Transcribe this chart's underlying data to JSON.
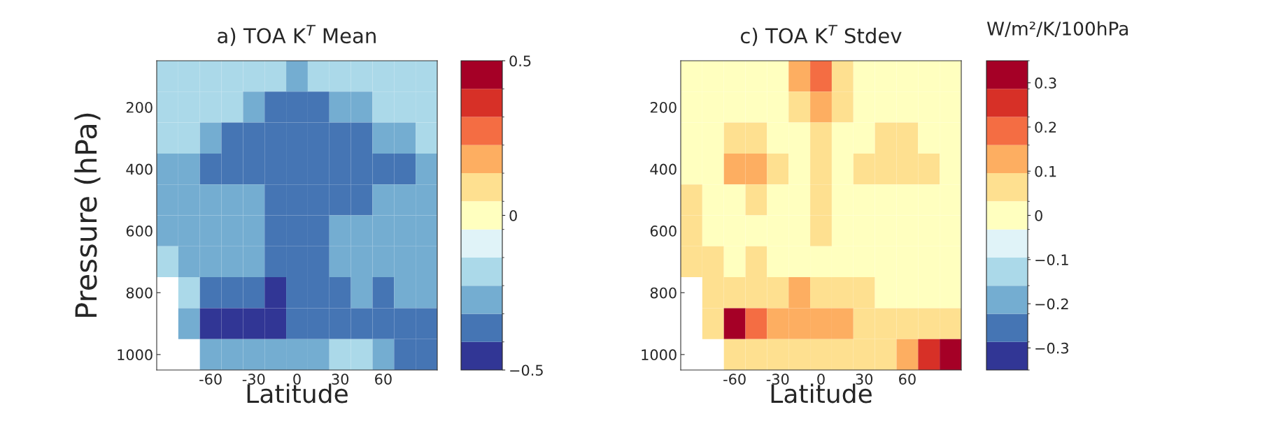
{
  "chart_data": [
    {
      "type": "heatmap",
      "title": "a) TOA K$^{T}$ Mean",
      "xlabel": "Latitude",
      "ylabel": "Pressure (hPa)",
      "categories": [
        null,
        null,
        "-60",
        null,
        "-30",
        null,
        "0",
        null,
        "30",
        null,
        "60",
        null,
        null
      ],
      "y_categories": [
        null,
        "200",
        null,
        "400",
        null,
        "600",
        null,
        "800",
        null,
        "1000"
      ],
      "clim": [
        -0.5,
        0.5
      ],
      "cticks": [
        {
          "value": -0.5,
          "label": "−0.5"
        },
        0,
        0.5
      ],
      "cells": [
        [
          -0.18,
          -0.18,
          -0.18,
          -0.18,
          -0.18,
          -0.18,
          -0.27,
          -0.18,
          -0.18,
          -0.18,
          -0.18,
          -0.18,
          -0.18
        ],
        [
          -0.18,
          -0.18,
          -0.18,
          -0.18,
          -0.27,
          -0.36,
          -0.36,
          -0.36,
          -0.27,
          -0.27,
          -0.18,
          -0.18,
          -0.18
        ],
        [
          -0.18,
          -0.18,
          -0.27,
          -0.36,
          -0.36,
          -0.36,
          -0.36,
          -0.36,
          -0.36,
          -0.36,
          -0.27,
          -0.27,
          -0.18
        ],
        [
          -0.27,
          -0.27,
          -0.36,
          -0.36,
          -0.36,
          -0.36,
          -0.36,
          -0.36,
          -0.36,
          -0.36,
          -0.36,
          -0.36,
          -0.27
        ],
        [
          -0.27,
          -0.27,
          -0.27,
          -0.27,
          -0.27,
          -0.36,
          -0.36,
          -0.36,
          -0.36,
          -0.36,
          -0.27,
          -0.27,
          -0.27
        ],
        [
          -0.27,
          -0.27,
          -0.27,
          -0.27,
          -0.27,
          -0.36,
          -0.36,
          -0.36,
          -0.27,
          -0.27,
          -0.27,
          -0.27,
          -0.27
        ],
        [
          -0.18,
          -0.27,
          -0.27,
          -0.27,
          -0.27,
          -0.36,
          -0.36,
          -0.36,
          -0.27,
          -0.27,
          -0.27,
          -0.27,
          -0.27
        ],
        [
          null,
          -0.18,
          -0.36,
          -0.36,
          -0.36,
          -0.45,
          -0.36,
          -0.36,
          -0.36,
          -0.27,
          -0.36,
          -0.27,
          -0.27
        ],
        [
          null,
          -0.27,
          -0.45,
          -0.45,
          -0.45,
          -0.45,
          -0.36,
          -0.36,
          -0.36,
          -0.36,
          -0.36,
          -0.36,
          -0.36
        ],
        [
          null,
          null,
          -0.27,
          -0.27,
          -0.27,
          -0.27,
          -0.27,
          -0.27,
          -0.18,
          -0.18,
          -0.27,
          -0.36,
          -0.36
        ]
      ]
    },
    {
      "type": "heatmap",
      "title": "c) TOA K$^{T}$ Stdev",
      "xlabel": "Latitude",
      "clabel": "W/m²/K/100hPa",
      "categories": [
        null,
        null,
        "-60",
        null,
        "-30",
        null,
        "0",
        null,
        "30",
        null,
        "60",
        null,
        null
      ],
      "y_categories": [
        null,
        "200",
        null,
        "400",
        null,
        "600",
        null,
        "800",
        null,
        "1000"
      ],
      "clim": [
        -0.35,
        0.35
      ],
      "cticks": [
        {
          "value": -0.3,
          "label": "−0.3"
        },
        {
          "value": -0.2,
          "label": "−0.2"
        },
        {
          "value": -0.1,
          "label": "−0.1"
        },
        0,
        0.1,
        0.2,
        0.3
      ],
      "cells": [
        [
          0,
          0,
          0,
          0,
          0,
          0.13,
          0.19,
          0.06,
          0,
          0,
          0,
          0,
          0
        ],
        [
          0,
          0,
          0,
          0,
          0,
          0.06,
          0.13,
          0.06,
          0,
          0,
          0,
          0,
          0
        ],
        [
          0,
          0,
          0.06,
          0.06,
          0,
          0,
          0.06,
          0,
          0,
          0.06,
          0.06,
          0,
          0
        ],
        [
          0,
          0,
          0.13,
          0.13,
          0.06,
          0,
          0.06,
          0,
          0.06,
          0.06,
          0.06,
          0.06,
          0
        ],
        [
          0.06,
          0,
          0,
          0.06,
          0,
          0,
          0.06,
          0,
          0,
          0,
          0,
          0,
          0
        ],
        [
          0.06,
          0,
          0,
          0,
          0,
          0,
          0.06,
          0,
          0,
          0,
          0,
          0,
          0
        ],
        [
          0.06,
          0.06,
          0,
          0.06,
          0,
          0,
          0,
          0,
          0,
          0,
          0,
          0,
          0
        ],
        [
          null,
          0.06,
          0.06,
          0.06,
          0.06,
          0.13,
          0.06,
          0.06,
          0.06,
          0,
          0,
          0,
          0
        ],
        [
          null,
          0.06,
          0.32,
          0.19,
          0.13,
          0.13,
          0.13,
          0.13,
          0.06,
          0.06,
          0.06,
          0.06,
          0.06
        ],
        [
          null,
          null,
          0.06,
          0.06,
          0.06,
          0.06,
          0.06,
          0.06,
          0.06,
          0.06,
          0.13,
          0.25,
          0.32
        ]
      ]
    }
  ]
}
